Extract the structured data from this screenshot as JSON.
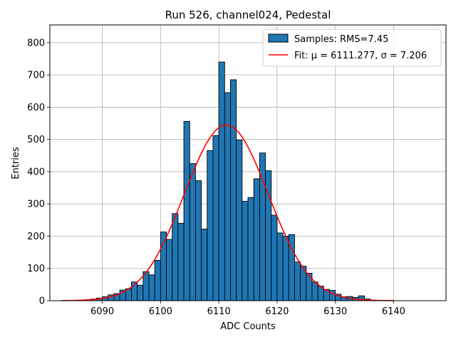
{
  "chart_data": {
    "type": "bar",
    "title": "Run 526, channel024, Pedestal",
    "xlabel": "ADC Counts",
    "ylabel": "Entries",
    "xlim": [
      6081,
      6149
    ],
    "ylim": [
      0,
      855
    ],
    "xticks": [
      6090,
      6100,
      6110,
      6120,
      6130,
      6140
    ],
    "yticks": [
      0,
      100,
      200,
      300,
      400,
      500,
      600,
      700,
      800
    ],
    "grid": true,
    "legend_position": "top-right",
    "bin_width": 1,
    "histogram": {
      "name": "Samples: RMS=7.45",
      "color": "#1f77b4",
      "bin_left_edges": [
        6083,
        6084,
        6085,
        6086,
        6087,
        6088,
        6089,
        6090,
        6091,
        6092,
        6093,
        6094,
        6095,
        6096,
        6097,
        6098,
        6099,
        6100,
        6101,
        6102,
        6103,
        6104,
        6105,
        6106,
        6107,
        6108,
        6109,
        6110,
        6111,
        6112,
        6113,
        6114,
        6115,
        6116,
        6117,
        6118,
        6119,
        6120,
        6121,
        6122,
        6123,
        6124,
        6125,
        6126,
        6127,
        6128,
        6129,
        6130,
        6131,
        6132,
        6133,
        6134,
        6135,
        6136,
        6137,
        6138,
        6139
      ],
      "counts": [
        0,
        0,
        1,
        2,
        3,
        5,
        8,
        12,
        18,
        22,
        33,
        37,
        58,
        48,
        90,
        80,
        125,
        213,
        190,
        270,
        240,
        556,
        425,
        372,
        222,
        465,
        512,
        740,
        645,
        685,
        498,
        308,
        320,
        378,
        458,
        403,
        265,
        210,
        200,
        205,
        120,
        107,
        85,
        58,
        45,
        35,
        32,
        20,
        12,
        13,
        10,
        15,
        5,
        2,
        1,
        0,
        0
      ]
    },
    "fit": {
      "name": "Fit: μ = 6111.277, σ = 7.206",
      "color": "#ff0000",
      "mu": 6111.277,
      "sigma": 7.206,
      "amplitude": 545,
      "x_range": [
        6083,
        6140
      ]
    },
    "legend": [
      {
        "label_prefix": "Samples: RMS=7.45",
        "kind": "patch"
      },
      {
        "label_prefix": "Fit: ",
        "kind": "line"
      }
    ]
  }
}
